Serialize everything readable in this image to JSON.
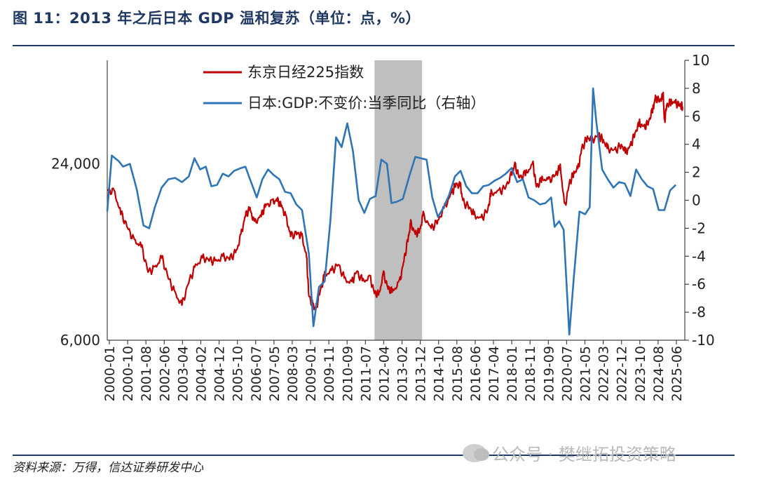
{
  "header": {
    "title": "图 11：2013 年之后日本 GDP 温和复苏（单位：点，%）"
  },
  "footer": {
    "source": "资料来源：万得，信达证券研发中心",
    "watermark": "公众号 · 樊继拓投资策略"
  },
  "colors": {
    "nikkei": "#c00000",
    "gdp": "#2e75b6",
    "shade": "#bfbfbf",
    "rule": "#1f3763"
  },
  "chart_data": {
    "type": "line",
    "x_ticks": [
      "2000-01",
      "2000-10",
      "2001-08",
      "2002-06",
      "2003-04",
      "2004-02",
      "2004-12",
      "2005-10",
      "2006-07",
      "2007-05",
      "2008-03",
      "2009-01",
      "2009-11",
      "2010-09",
      "2011-07",
      "2012-04",
      "2013-02",
      "2013-12",
      "2014-10",
      "2015-08",
      "2016-06",
      "2017-04",
      "2018-01",
      "2018-11",
      "2019-09",
      "2020-07",
      "2021-05",
      "2022-03",
      "2022-12",
      "2023-10",
      "2024-08",
      "2025-06"
    ],
    "x_range": [
      2000.0,
      2025.5
    ],
    "left_axis": {
      "scale": "log",
      "ticks": [
        "6,000",
        "24,000"
      ],
      "tick_values": [
        6000,
        24000
      ],
      "range": [
        6000,
        54000
      ]
    },
    "right_axis": {
      "ticks": [
        "10",
        "8",
        "6",
        "4",
        "2",
        "0",
        "-2",
        "-4",
        "-6",
        "-8",
        "-10"
      ],
      "range": [
        -10,
        10
      ]
    },
    "shaded_region": [
      2011.8,
      2013.9
    ],
    "series": [
      {
        "name": "东京日经225指数",
        "axis": "left",
        "points": [
          [
            2000.0,
            19500
          ],
          [
            2000.3,
            19200
          ],
          [
            2000.6,
            16300
          ],
          [
            2000.9,
            14500
          ],
          [
            2001.2,
            13000
          ],
          [
            2001.5,
            12600
          ],
          [
            2001.8,
            10300
          ],
          [
            2002.1,
            10500
          ],
          [
            2002.4,
            11500
          ],
          [
            2002.7,
            9800
          ],
          [
            2003.0,
            8600
          ],
          [
            2003.3,
            7900
          ],
          [
            2003.6,
            9500
          ],
          [
            2003.9,
            10700
          ],
          [
            2004.2,
            11400
          ],
          [
            2004.5,
            11300
          ],
          [
            2004.8,
            11100
          ],
          [
            2005.1,
            11500
          ],
          [
            2005.4,
            11400
          ],
          [
            2005.7,
            12000
          ],
          [
            2005.9,
            13600
          ],
          [
            2006.1,
            16000
          ],
          [
            2006.3,
            16800
          ],
          [
            2006.5,
            15000
          ],
          [
            2006.8,
            16000
          ],
          [
            2007.0,
            17300
          ],
          [
            2007.3,
            17700
          ],
          [
            2007.5,
            18000
          ],
          [
            2007.7,
            17200
          ],
          [
            2007.9,
            15600
          ],
          [
            2008.1,
            13600
          ],
          [
            2008.4,
            13900
          ],
          [
            2008.6,
            13500
          ],
          [
            2008.8,
            11500
          ],
          [
            2008.9,
            8500
          ],
          [
            2009.1,
            7800
          ],
          [
            2009.2,
            7600
          ],
          [
            2009.4,
            8800
          ],
          [
            2009.6,
            10000
          ],
          [
            2009.9,
            10300
          ],
          [
            2010.2,
            10900
          ],
          [
            2010.5,
            9600
          ],
          [
            2010.8,
            9400
          ],
          [
            2011.0,
            10300
          ],
          [
            2011.3,
            9500
          ],
          [
            2011.6,
            9800
          ],
          [
            2011.8,
            8700
          ],
          [
            2012.0,
            8600
          ],
          [
            2012.2,
            10100
          ],
          [
            2012.4,
            9000
          ],
          [
            2012.6,
            8800
          ],
          [
            2012.9,
            9400
          ],
          [
            2013.1,
            11200
          ],
          [
            2013.3,
            13500
          ],
          [
            2013.4,
            15000
          ],
          [
            2013.6,
            13800
          ],
          [
            2013.8,
            14200
          ],
          [
            2013.95,
            16000
          ],
          [
            2014.3,
            14400
          ],
          [
            2014.6,
            15300
          ],
          [
            2014.9,
            17000
          ],
          [
            2015.2,
            19000
          ],
          [
            2015.4,
            20500
          ],
          [
            2015.6,
            20000
          ],
          [
            2015.7,
            17800
          ],
          [
            2016.0,
            17000
          ],
          [
            2016.2,
            16000
          ],
          [
            2016.5,
            15500
          ],
          [
            2016.8,
            16700
          ],
          [
            2016.95,
            19000
          ],
          [
            2017.3,
            19200
          ],
          [
            2017.6,
            20000
          ],
          [
            2017.9,
            22500
          ],
          [
            2018.0,
            23700
          ],
          [
            2018.2,
            21500
          ],
          [
            2018.5,
            22300
          ],
          [
            2018.8,
            23800
          ],
          [
            2018.95,
            20000
          ],
          [
            2019.2,
            21300
          ],
          [
            2019.5,
            21000
          ],
          [
            2019.8,
            22000
          ],
          [
            2020.0,
            23500
          ],
          [
            2020.2,
            17000
          ],
          [
            2020.4,
            20500
          ],
          [
            2020.6,
            22300
          ],
          [
            2020.8,
            23200
          ],
          [
            2020.95,
            27000
          ],
          [
            2021.2,
            29500
          ],
          [
            2021.4,
            28800
          ],
          [
            2021.7,
            30000
          ],
          [
            2021.9,
            28800
          ],
          [
            2022.1,
            27000
          ],
          [
            2022.4,
            26500
          ],
          [
            2022.7,
            27800
          ],
          [
            2022.9,
            26200
          ],
          [
            2023.1,
            27500
          ],
          [
            2023.3,
            30500
          ],
          [
            2023.5,
            33000
          ],
          [
            2023.7,
            31800
          ],
          [
            2023.9,
            33300
          ],
          [
            2024.1,
            37000
          ],
          [
            2024.2,
            40000
          ],
          [
            2024.4,
            39500
          ],
          [
            2024.55,
            41000
          ],
          [
            2024.6,
            33000
          ],
          [
            2024.7,
            38000
          ],
          [
            2024.9,
            39000
          ],
          [
            2025.1,
            38500
          ],
          [
            2025.3,
            38000
          ],
          [
            2025.4,
            37500
          ]
        ]
      },
      {
        "name": "日本:GDP:不变价:当季同比（右轴）",
        "axis": "right",
        "points": [
          [
            2000.0,
            -0.8
          ],
          [
            2000.2,
            3.2
          ],
          [
            2000.5,
            2.8
          ],
          [
            2000.7,
            2.4
          ],
          [
            2001.0,
            2.6
          ],
          [
            2001.3,
            0.8
          ],
          [
            2001.6,
            -1.8
          ],
          [
            2001.85,
            -2.0
          ],
          [
            2002.1,
            -0.5
          ],
          [
            2002.4,
            0.9
          ],
          [
            2002.7,
            1.5
          ],
          [
            2003.0,
            1.6
          ],
          [
            2003.3,
            1.3
          ],
          [
            2003.6,
            1.7
          ],
          [
            2003.85,
            3.0
          ],
          [
            2004.1,
            2.2
          ],
          [
            2004.35,
            2.4
          ],
          [
            2004.6,
            1.0
          ],
          [
            2004.85,
            1.1
          ],
          [
            2005.1,
            1.9
          ],
          [
            2005.35,
            1.7
          ],
          [
            2005.6,
            2.1
          ],
          [
            2005.9,
            2.3
          ],
          [
            2006.1,
            2.4
          ],
          [
            2006.35,
            1.3
          ],
          [
            2006.6,
            0.2
          ],
          [
            2006.85,
            1.5
          ],
          [
            2007.1,
            2.2
          ],
          [
            2007.35,
            1.8
          ],
          [
            2007.6,
            1.5
          ],
          [
            2007.85,
            0.6
          ],
          [
            2008.1,
            0.5
          ],
          [
            2008.35,
            -0.3
          ],
          [
            2008.6,
            -0.7
          ],
          [
            2008.9,
            -3.8
          ],
          [
            2009.1,
            -9.0
          ],
          [
            2009.35,
            -6.2
          ],
          [
            2009.6,
            -5.8
          ],
          [
            2009.85,
            -1.5
          ],
          [
            2010.1,
            4.5
          ],
          [
            2010.35,
            3.8
          ],
          [
            2010.6,
            5.5
          ],
          [
            2010.85,
            3.5
          ],
          [
            2011.1,
            0.0
          ],
          [
            2011.35,
            -0.9
          ],
          [
            2011.6,
            0.1
          ],
          [
            2011.85,
            0.3
          ],
          [
            2012.1,
            2.9
          ],
          [
            2012.35,
            2.6
          ],
          [
            2012.55,
            -0.2
          ],
          [
            2012.8,
            -0.1
          ],
          [
            2013.05,
            0.1
          ],
          [
            2013.35,
            1.8
          ],
          [
            2013.6,
            3.1
          ],
          [
            2013.85,
            3.0
          ],
          [
            2014.1,
            2.9
          ],
          [
            2014.35,
            0.2
          ],
          [
            2014.6,
            -1.2
          ],
          [
            2014.85,
            -0.5
          ],
          [
            2015.1,
            0.4
          ],
          [
            2015.35,
            1.7
          ],
          [
            2015.6,
            2.1
          ],
          [
            2015.85,
            1.0
          ],
          [
            2016.1,
            0.5
          ],
          [
            2016.35,
            0.5
          ],
          [
            2016.6,
            1.0
          ],
          [
            2016.85,
            1.1
          ],
          [
            2017.1,
            1.4
          ],
          [
            2017.35,
            1.6
          ],
          [
            2017.6,
            1.9
          ],
          [
            2017.85,
            2.3
          ],
          [
            2018.1,
            1.3
          ],
          [
            2018.35,
            1.5
          ],
          [
            2018.6,
            0.2
          ],
          [
            2018.85,
            0.0
          ],
          [
            2019.1,
            -0.3
          ],
          [
            2019.35,
            -0.2
          ],
          [
            2019.6,
            0.2
          ],
          [
            2019.75,
            -1.9
          ],
          [
            2019.95,
            -1.5
          ],
          [
            2020.15,
            -2.1
          ],
          [
            2020.4,
            -9.6
          ],
          [
            2020.6,
            -5.5
          ],
          [
            2020.85,
            -0.8
          ],
          [
            2021.1,
            -1.0
          ],
          [
            2021.3,
            -0.5
          ],
          [
            2021.45,
            8.0
          ],
          [
            2021.6,
            5.5
          ],
          [
            2021.85,
            2.2
          ],
          [
            2022.1,
            1.5
          ],
          [
            2022.35,
            0.9
          ],
          [
            2022.6,
            1.3
          ],
          [
            2022.85,
            1.2
          ],
          [
            2023.1,
            0.3
          ],
          [
            2023.35,
            2.2
          ],
          [
            2023.6,
            1.5
          ],
          [
            2023.85,
            1.0
          ],
          [
            2024.1,
            0.8
          ],
          [
            2024.35,
            -0.7
          ],
          [
            2024.6,
            -0.7
          ],
          [
            2024.85,
            0.7
          ],
          [
            2025.1,
            1.1
          ]
        ]
      }
    ]
  }
}
